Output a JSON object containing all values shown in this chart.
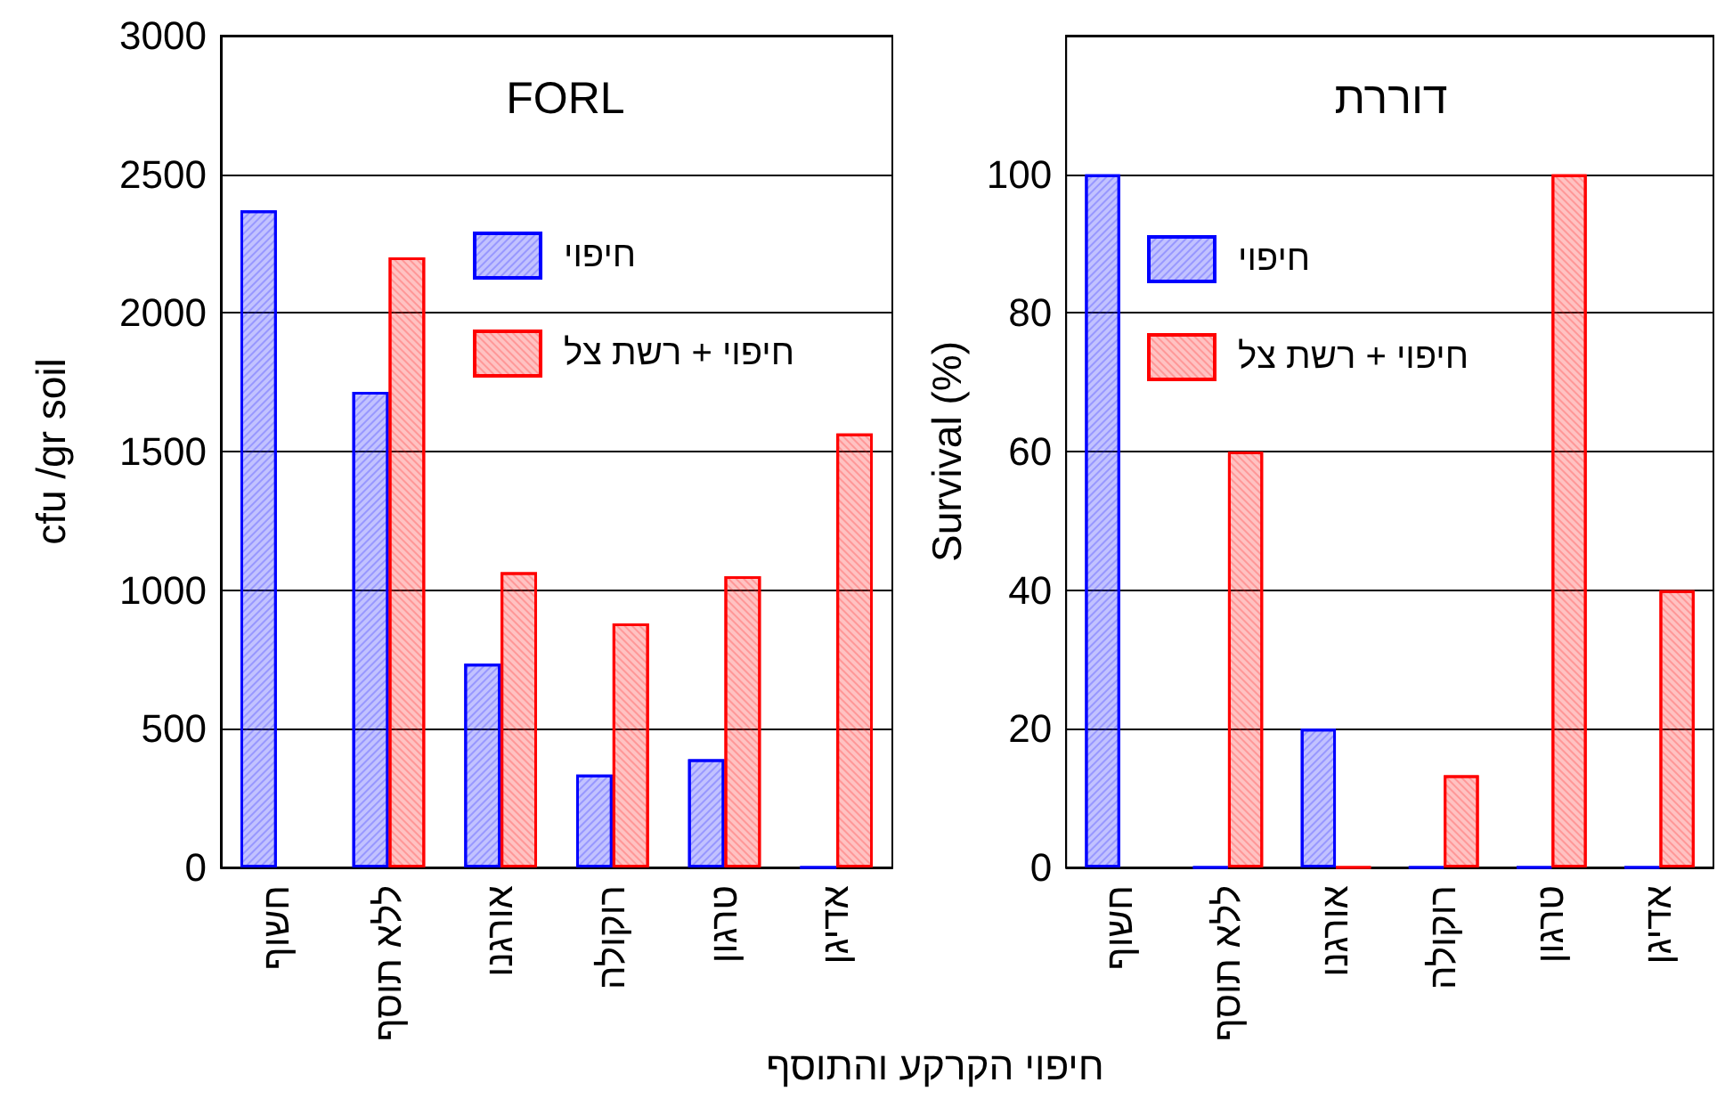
{
  "chart_data": [
    {
      "type": "bar",
      "title": "FORL",
      "ylabel": "cfu /gr soil",
      "xlabel": "חיפוי הקרקע והתוסף",
      "categories": [
        "חשוף",
        "ללא תוסף",
        "אורגנו",
        "רוקולה",
        "טרגון",
        "אדיגן"
      ],
      "series": [
        {
          "name": "חיפוי",
          "color": "#0000ff",
          "values": [
            2370,
            1715,
            735,
            335,
            390,
            0
          ]
        },
        {
          "name": "חיפוי + רשת צל",
          "color": "#ff0000",
          "values": [
            null,
            2200,
            1065,
            880,
            1050,
            1565
          ]
        }
      ],
      "ylim": [
        0,
        3000
      ],
      "yticks": [
        0,
        500,
        1000,
        1500,
        2000,
        2500,
        3000
      ],
      "grid": "y",
      "legend": "top right"
    },
    {
      "type": "bar",
      "title": "דוררת",
      "ylabel": "Survival (%)",
      "categories": [
        "חשוף",
        "ללא תוסף",
        "אורגנו",
        "רוקולה",
        "טרגון",
        "אדיגן"
      ],
      "series": [
        {
          "name": "חיפוי",
          "color": "#0000ff",
          "values": [
            100,
            0,
            20,
            0,
            0,
            0
          ]
        },
        {
          "name": "חיפוי + רשת צל",
          "color": "#ff0000",
          "values": [
            null,
            60,
            0,
            13.3,
            100,
            40
          ]
        }
      ],
      "ylim": [
        0,
        120
      ],
      "yticks": [
        0,
        20,
        40,
        60,
        80,
        100
      ],
      "grid": "y",
      "legend": "top left"
    }
  ]
}
